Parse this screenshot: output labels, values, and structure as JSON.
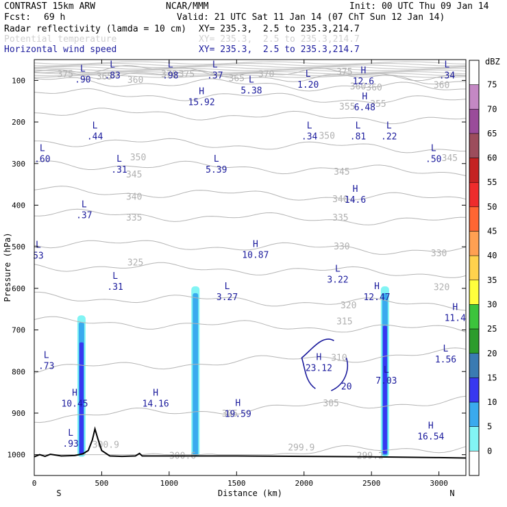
{
  "header": {
    "model": "CONTRAST 15km ARW",
    "org": "NCAR/MMM",
    "init": "Init: 00 UTC Thu 09 Jan 14",
    "fcst_label": "Fcst:",
    "fcst_value": "69 h",
    "valid": "Valid: 21 UTC Sat 11 Jan 14 (07 ChT Sun 12 Jan 14)",
    "fields": [
      {
        "name": "Radar reflectivity (lamda = 10 cm)",
        "xy": "XY= 235.3,  2.5 to 235.3,214.7",
        "color": "#000000"
      },
      {
        "name": "Potential temperature",
        "xy": "XY= 235.3,  2.5 to 235.3,214.7",
        "color": "#cfcfcf"
      },
      {
        "name": "Horizontal wind speed",
        "xy": "XY= 235.3,  2.5 to 235.3,214.7",
        "color": "#1a1a9c"
      }
    ]
  },
  "chart_data": {
    "type": "cross-section",
    "xlabel": "Distance (km)",
    "ylabel": "Pressure (hPa)",
    "xlim": [
      0,
      3200
    ],
    "ylim": [
      1050,
      50
    ],
    "xticks": [
      0,
      500,
      1000,
      1500,
      2000,
      2500,
      3000
    ],
    "yticks": [
      100,
      200,
      300,
      400,
      500,
      600,
      700,
      800,
      900,
      1000
    ],
    "x_end_labels": {
      "left": "S",
      "right": "N"
    },
    "theta_contours": [
      {
        "value": 300,
        "p": 1000
      },
      {
        "value": 305,
        "p": 890
      },
      {
        "value": 310,
        "p": 775
      },
      {
        "value": 315,
        "p": 690
      },
      {
        "value": 320,
        "p": 630
      },
      {
        "value": 325,
        "p": 555
      },
      {
        "value": 330,
        "p": 500
      },
      {
        "value": 335,
        "p": 430
      },
      {
        "value": 340,
        "p": 375
      },
      {
        "value": 345,
        "p": 310
      },
      {
        "value": 350,
        "p": 255
      },
      {
        "value": 355,
        "p": 185
      },
      {
        "value": 360,
        "p": 140
      },
      {
        "value": 365,
        "p": 110
      },
      {
        "value": 370,
        "p": 90
      },
      {
        "value": 375,
        "p": 80
      }
    ],
    "theta_labels": [
      {
        "text": "375",
        "x": 230,
        "p": 92
      },
      {
        "text": "365",
        "x": 520,
        "p": 98
      },
      {
        "text": "360",
        "x": 750,
        "p": 106
      },
      {
        "text": "370",
        "x": 1000,
        "p": 92
      },
      {
        "text": "375",
        "x": 1130,
        "p": 92
      },
      {
        "text": "365",
        "x": 1500,
        "p": 102
      },
      {
        "text": "370",
        "x": 1720,
        "p": 92
      },
      {
        "text": "375",
        "x": 2300,
        "p": 86
      },
      {
        "text": "360",
        "x": 2400,
        "p": 122
      },
      {
        "text": "360",
        "x": 2520,
        "p": 124
      },
      {
        "text": "360",
        "x": 3020,
        "p": 118
      },
      {
        "text": "355",
        "x": 2320,
        "p": 170
      },
      {
        "text": "355",
        "x": 2550,
        "p": 164
      },
      {
        "text": "350",
        "x": 2170,
        "p": 240
      },
      {
        "text": "350",
        "x": 770,
        "p": 292
      },
      {
        "text": "345",
        "x": 740,
        "p": 333
      },
      {
        "text": "345",
        "x": 2280,
        "p": 327
      },
      {
        "text": "345",
        "x": 3080,
        "p": 294
      },
      {
        "text": "340",
        "x": 740,
        "p": 387
      },
      {
        "text": "340",
        "x": 2270,
        "p": 393
      },
      {
        "text": "335",
        "x": 740,
        "p": 437
      },
      {
        "text": "335",
        "x": 2270,
        "p": 437
      },
      {
        "text": "330",
        "x": 2280,
        "p": 506
      },
      {
        "text": "330",
        "x": 3000,
        "p": 523
      },
      {
        "text": "325",
        "x": 750,
        "p": 545
      },
      {
        "text": "320",
        "x": 2330,
        "p": 648
      },
      {
        "text": "320",
        "x": 3020,
        "p": 604
      },
      {
        "text": "315",
        "x": 2300,
        "p": 687
      },
      {
        "text": "310",
        "x": 2260,
        "p": 774
      },
      {
        "text": "305",
        "x": 1450,
        "p": 908
      },
      {
        "text": "305",
        "x": 2200,
        "p": 884
      },
      {
        "text": "300.9",
        "x": 530,
        "p": 983
      },
      {
        "text": "300.6",
        "x": 1100,
        "p": 1010
      },
      {
        "text": "299.9",
        "x": 1980,
        "p": 990
      },
      {
        "text": "299.2",
        "x": 2490,
        "p": 1010
      }
    ],
    "wind_extrema": [
      {
        "type": "L",
        "value": ".90",
        "x": 360,
        "p": 94
      },
      {
        "type": "L",
        "value": ".83",
        "x": 580,
        "p": 84
      },
      {
        "type": "L",
        "value": ".98",
        "x": 1010,
        "p": 84
      },
      {
        "type": "L",
        "value": ".37",
        "x": 1340,
        "p": 84
      },
      {
        "type": "L",
        "value": "5.38",
        "x": 1610,
        "p": 120
      },
      {
        "type": "L",
        "value": "1.20",
        "x": 2030,
        "p": 106
      },
      {
        "type": "H",
        "value": "12.6",
        "x": 2440,
        "p": 98
      },
      {
        "type": "L",
        "value": ".34",
        "x": 3060,
        "p": 84
      },
      {
        "type": "H",
        "value": "15.92",
        "x": 1240,
        "p": 148
      },
      {
        "type": "H",
        "value": "6.48",
        "x": 2450,
        "p": 160
      },
      {
        "type": "L",
        "value": ".44",
        "x": 450,
        "p": 230
      },
      {
        "type": "L",
        "value": ".34",
        "x": 2040,
        "p": 230
      },
      {
        "type": "L",
        "value": ".81",
        "x": 2400,
        "p": 230
      },
      {
        "type": "L",
        "value": ".22",
        "x": 2630,
        "p": 230
      },
      {
        "type": "L",
        "value": ".60",
        "x": 60,
        "p": 285
      },
      {
        "type": "L",
        "value": ".31",
        "x": 630,
        "p": 310
      },
      {
        "type": "L",
        "value": "5.39",
        "x": 1350,
        "p": 310
      },
      {
        "type": "L",
        "value": ".50",
        "x": 2960,
        "p": 285
      },
      {
        "type": "H",
        "value": "14.6",
        "x": 2380,
        "p": 383
      },
      {
        "type": "L",
        "value": ".37",
        "x": 370,
        "p": 420
      },
      {
        "type": "H",
        "value": "10.87",
        "x": 1640,
        "p": 515
      },
      {
        "type": "L",
        "value": "53",
        "x": 30,
        "p": 517
      },
      {
        "type": "L",
        "value": ".31",
        "x": 600,
        "p": 592
      },
      {
        "type": "L",
        "value": "3.22",
        "x": 2250,
        "p": 575
      },
      {
        "type": "L",
        "value": "3.27",
        "x": 1430,
        "p": 617
      },
      {
        "type": "H",
        "value": "12.47",
        "x": 2540,
        "p": 617
      },
      {
        "type": "H",
        "value": "11.4",
        "x": 3120,
        "p": 667
      },
      {
        "type": "L",
        "value": ".73",
        "x": 90,
        "p": 782
      },
      {
        "type": "L",
        "value": "1.56",
        "x": 3050,
        "p": 767
      },
      {
        "type": "H",
        "value": "23.12",
        "x": 2110,
        "p": 787
      },
      {
        "type": "L",
        "value": "7.03",
        "x": 2610,
        "p": 818
      },
      {
        "type": "H",
        "value": "10.45",
        "x": 300,
        "p": 873
      },
      {
        "type": "H",
        "value": "14.16",
        "x": 900,
        "p": 873
      },
      {
        "type": "H",
        "value": "19.59",
        "x": 1510,
        "p": 898
      },
      {
        "type": "L",
        "value": ".93",
        "x": 270,
        "p": 969
      },
      {
        "type": "H",
        "value": "16.54",
        "x": 2940,
        "p": 952
      }
    ],
    "wind_contours": [
      {
        "value": "20",
        "x": 2000,
        "p": 830
      }
    ],
    "reflectivity_columns": [
      {
        "x": 350,
        "p_top": 665,
        "core_dbz": 20,
        "core_top": 730
      },
      {
        "x": 1195,
        "p_top": 595,
        "core_dbz": 10,
        "core_top": 900
      },
      {
        "x": 2600,
        "p_top": 595,
        "core_dbz": 15,
        "core_top": 690
      }
    ],
    "terrain": [
      [
        0,
        1005
      ],
      [
        40,
        1000
      ],
      [
        80,
        1004
      ],
      [
        120,
        999
      ],
      [
        200,
        1003
      ],
      [
        300,
        1002
      ],
      [
        360,
        998
      ],
      [
        400,
        990
      ],
      [
        430,
        965
      ],
      [
        450,
        938
      ],
      [
        470,
        960
      ],
      [
        500,
        990
      ],
      [
        560,
        1003
      ],
      [
        650,
        1004
      ],
      [
        750,
        1003
      ],
      [
        780,
        997
      ],
      [
        800,
        1003
      ],
      [
        1000,
        1003
      ],
      [
        1500,
        1003
      ],
      [
        2000,
        1004
      ],
      [
        2500,
        1005
      ],
      [
        3000,
        1007
      ],
      [
        3200,
        1008
      ]
    ],
    "colorbar": {
      "label": "dBZ",
      "levels": [
        "75",
        "70",
        "65",
        "60",
        "55",
        "50",
        "45",
        "40",
        "35",
        "30",
        "25",
        "20",
        "15",
        "10",
        "5",
        "0"
      ],
      "colors": [
        "#ffffff",
        "#c488c4",
        "#9a4c9a",
        "#9c4d5c",
        "#c42222",
        "#ee2c2c",
        "#ff6633",
        "#ffa052",
        "#ffd24d",
        "#ffff3c",
        "#3cc43c",
        "#2c9c2c",
        "#3a7bb2",
        "#3838f0",
        "#3aaaee",
        "#82f4f4",
        "#ffffff"
      ]
    }
  }
}
